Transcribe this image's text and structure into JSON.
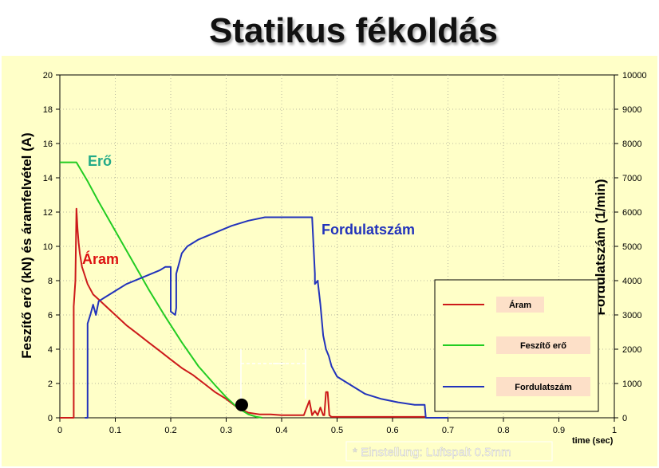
{
  "title": "Statikus fékoldás",
  "chart_data": {
    "type": "line",
    "xlabel": "time (sec)",
    "ylabel_left": "Feszítő erő (kN) és áramfelvétel (A)",
    "ylabel_right": "Fordulatszám (1/min)",
    "xlim": [
      0,
      1
    ],
    "ylim_left": [
      0,
      20
    ],
    "ylim_right": [
      0,
      10000
    ],
    "grid": true,
    "xticks": [
      "0",
      "0.1",
      "0.2",
      "0.3",
      "0.4",
      "0.5",
      "0.6",
      "0.7",
      "0.8",
      "0.9",
      "1"
    ],
    "yticks_left": [
      "0",
      "2",
      "4",
      "6",
      "8",
      "10",
      "12",
      "14",
      "16",
      "18",
      "20"
    ],
    "yticks_right": [
      "0",
      "1000",
      "2000",
      "3000",
      "4000",
      "5000",
      "6000",
      "7000",
      "8000",
      "9000",
      "10000"
    ],
    "legend_position": "right-middle",
    "series": [
      {
        "name": "Áram",
        "axis": "left",
        "color": "#cc1a1a",
        "x": [
          0,
          0.025,
          0.025,
          0.028,
          0.03,
          0.032,
          0.034,
          0.036,
          0.04,
          0.045,
          0.05,
          0.06,
          0.07,
          0.08,
          0.09,
          0.1,
          0.12,
          0.14,
          0.16,
          0.18,
          0.2,
          0.22,
          0.24,
          0.26,
          0.28,
          0.3,
          0.32,
          0.34,
          0.36,
          0.38,
          0.4,
          0.42,
          0.44,
          0.45,
          0.455,
          0.46,
          0.465,
          0.47,
          0.475,
          0.477,
          0.48,
          0.483,
          0.486,
          0.49,
          0.5,
          0.66
        ],
        "y": [
          0,
          0,
          6.5,
          8,
          12.2,
          11,
          10.2,
          9.6,
          8.8,
          8.3,
          7.8,
          7.2,
          6.9,
          6.6,
          6.3,
          6.0,
          5.4,
          4.9,
          4.4,
          3.9,
          3.4,
          2.9,
          2.5,
          2.0,
          1.5,
          1.1,
          0.6,
          0.3,
          0.2,
          0.2,
          0.15,
          0.15,
          0.15,
          1.0,
          0.15,
          0.4,
          0.15,
          0.6,
          0.15,
          0.15,
          1.5,
          1.5,
          0.15,
          0.05,
          0.05,
          0.05
        ]
      },
      {
        "name": "Feszítő erő",
        "axis": "left",
        "color": "#22cc22",
        "x": [
          0,
          0.03,
          0.05,
          0.07,
          0.1,
          0.13,
          0.16,
          0.19,
          0.22,
          0.25,
          0.28,
          0.3,
          0.32,
          0.34,
          0.355,
          0.365
        ],
        "y": [
          14.9,
          14.9,
          13.8,
          12.6,
          10.9,
          9.2,
          7.5,
          5.9,
          4.4,
          3.0,
          1.9,
          1.2,
          0.6,
          0.2,
          0.05,
          0
        ]
      },
      {
        "name": "Fordulatszám",
        "axis": "right",
        "color": "#2233bb",
        "x": [
          0.045,
          0.05,
          0.05,
          0.055,
          0.06,
          0.065,
          0.07,
          0.08,
          0.1,
          0.12,
          0.15,
          0.18,
          0.19,
          0.2,
          0.2,
          0.208,
          0.21,
          0.21,
          0.215,
          0.22,
          0.23,
          0.25,
          0.28,
          0.31,
          0.34,
          0.37,
          0.4,
          0.43,
          0.455,
          0.46,
          0.46,
          0.465,
          0.47,
          0.475,
          0.48,
          0.485,
          0.49,
          0.5,
          0.52,
          0.55,
          0.58,
          0.61,
          0.64,
          0.658,
          0.66,
          0.7
        ],
        "y": [
          0,
          0,
          2750,
          3000,
          3300,
          3000,
          3400,
          3500,
          3700,
          3900,
          4100,
          4300,
          4400,
          4400,
          3100,
          3000,
          3200,
          4200,
          4500,
          4800,
          5000,
          5200,
          5400,
          5600,
          5750,
          5850,
          5850,
          5850,
          5850,
          4200,
          3900,
          4000,
          3300,
          2400,
          2000,
          1800,
          1500,
          1200,
          1000,
          700,
          550,
          450,
          380,
          380,
          0,
          0
        ]
      }
    ],
    "annotations": [
      {
        "text": "Erő",
        "color": "#22aa88"
      },
      {
        "text": "Áram",
        "color": "#dd1111"
      },
      {
        "text": "Fordulatszám",
        "color": "#2233bb"
      }
    ],
    "marker": {
      "x": 0.328,
      "y": 0.75
    },
    "footnote": "* Einstellung: Luftspalt 0.5mm"
  }
}
